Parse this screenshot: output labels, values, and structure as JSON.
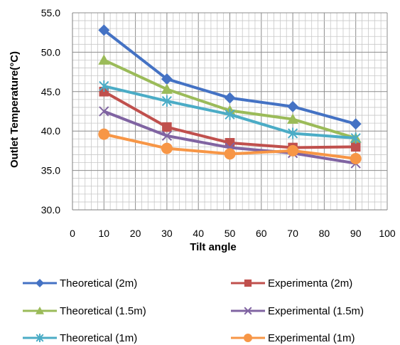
{
  "chart_data": {
    "type": "line",
    "title": "",
    "xlabel": "Tilt angle",
    "ylabel": "Outlet Temperature(°C)",
    "xlim": [
      0,
      100
    ],
    "ylim": [
      30,
      55
    ],
    "xticks": [
      0,
      10,
      20,
      30,
      40,
      50,
      60,
      70,
      80,
      90,
      100
    ],
    "yticks": [
      "30.0",
      "35.0",
      "40.0",
      "45.0",
      "50.0",
      "55.0"
    ],
    "grid": true,
    "legend_position": "bottom",
    "x": [
      10,
      30,
      50,
      70,
      90
    ],
    "series": [
      {
        "name": "Theoretical (2m)",
        "values": [
          52.8,
          46.6,
          44.2,
          43.1,
          40.9
        ],
        "color": "#4472C4",
        "marker": "diamond"
      },
      {
        "name": "Experimenta (2m)",
        "values": [
          45.0,
          40.5,
          38.5,
          37.9,
          38.0
        ],
        "color": "#C0504D",
        "marker": "square"
      },
      {
        "name": "Theoretical (1.5m)",
        "values": [
          49.0,
          45.3,
          42.6,
          41.5,
          39.1
        ],
        "color": "#9BBB59",
        "marker": "triangle"
      },
      {
        "name": "Experimental (1.5m)",
        "values": [
          42.5,
          39.4,
          37.9,
          37.2,
          35.9
        ],
        "color": "#8064A2",
        "marker": "x"
      },
      {
        "name": "Theoretical (1m)",
        "values": [
          45.7,
          43.8,
          42.1,
          39.7,
          39.1
        ],
        "color": "#4BACC6",
        "marker": "star"
      },
      {
        "name": "Experimental (1m)",
        "values": [
          39.6,
          37.8,
          37.1,
          37.5,
          36.5
        ],
        "color": "#F79646",
        "marker": "circle"
      }
    ]
  }
}
